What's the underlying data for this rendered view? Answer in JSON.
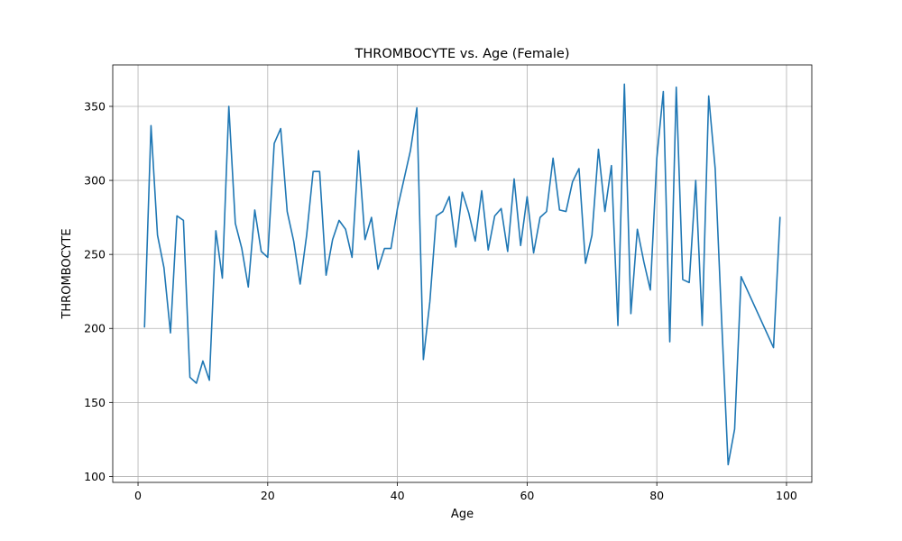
{
  "chart_data": {
    "type": "line",
    "title": "THROMBOCYTE vs. Age (Female)",
    "xlabel": "Age",
    "ylabel": "THROMBOCYTE",
    "xlim": [
      -3.9,
      103.9
    ],
    "ylim": [
      96,
      378
    ],
    "grid": true,
    "legend": "none",
    "x_ticks": [
      0,
      20,
      40,
      60,
      80,
      100
    ],
    "y_ticks": [
      100,
      150,
      200,
      250,
      300,
      350
    ],
    "series": [
      {
        "color": "#1f77b4",
        "x": [
          1,
          2,
          3,
          4,
          5,
          6,
          7,
          8,
          9,
          10,
          11,
          12,
          13,
          14,
          15,
          16,
          17,
          18,
          19,
          20,
          21,
          22,
          23,
          24,
          25,
          26,
          27,
          28,
          29,
          30,
          31,
          32,
          33,
          34,
          35,
          36,
          37,
          38,
          39,
          40,
          42,
          43,
          44,
          45,
          46,
          47,
          48,
          49,
          50,
          51,
          52,
          53,
          54,
          55,
          56,
          57,
          58,
          59,
          60,
          61,
          62,
          63,
          64,
          65,
          66,
          67,
          68,
          69,
          70,
          71,
          72,
          73,
          74,
          75,
          76,
          77,
          78,
          79,
          80,
          81,
          82,
          83,
          84,
          85,
          86,
          87,
          88,
          89,
          90,
          91,
          92,
          93,
          98,
          99
        ],
        "y": [
          201,
          337,
          263,
          241,
          197,
          276,
          273,
          167,
          163,
          178,
          165,
          266,
          234,
          350,
          271,
          254,
          228,
          280,
          252,
          248,
          325,
          335,
          279,
          259,
          230,
          263,
          306,
          306,
          236,
          260,
          273,
          267,
          248,
          320,
          260,
          275,
          240,
          254,
          254,
          281,
          320,
          349,
          179,
          218,
          276,
          279,
          289,
          255,
          292,
          278,
          259,
          293,
          253,
          276,
          281,
          252,
          301,
          256,
          289,
          251,
          275,
          279,
          315,
          280,
          279,
          299,
          308,
          244,
          263,
          321,
          279,
          310,
          202,
          365,
          210,
          267,
          245,
          226,
          315,
          360,
          191,
          363,
          233,
          231,
          300,
          202,
          357,
          308,
          205,
          108,
          132,
          235,
          187,
          275
        ]
      }
    ]
  }
}
